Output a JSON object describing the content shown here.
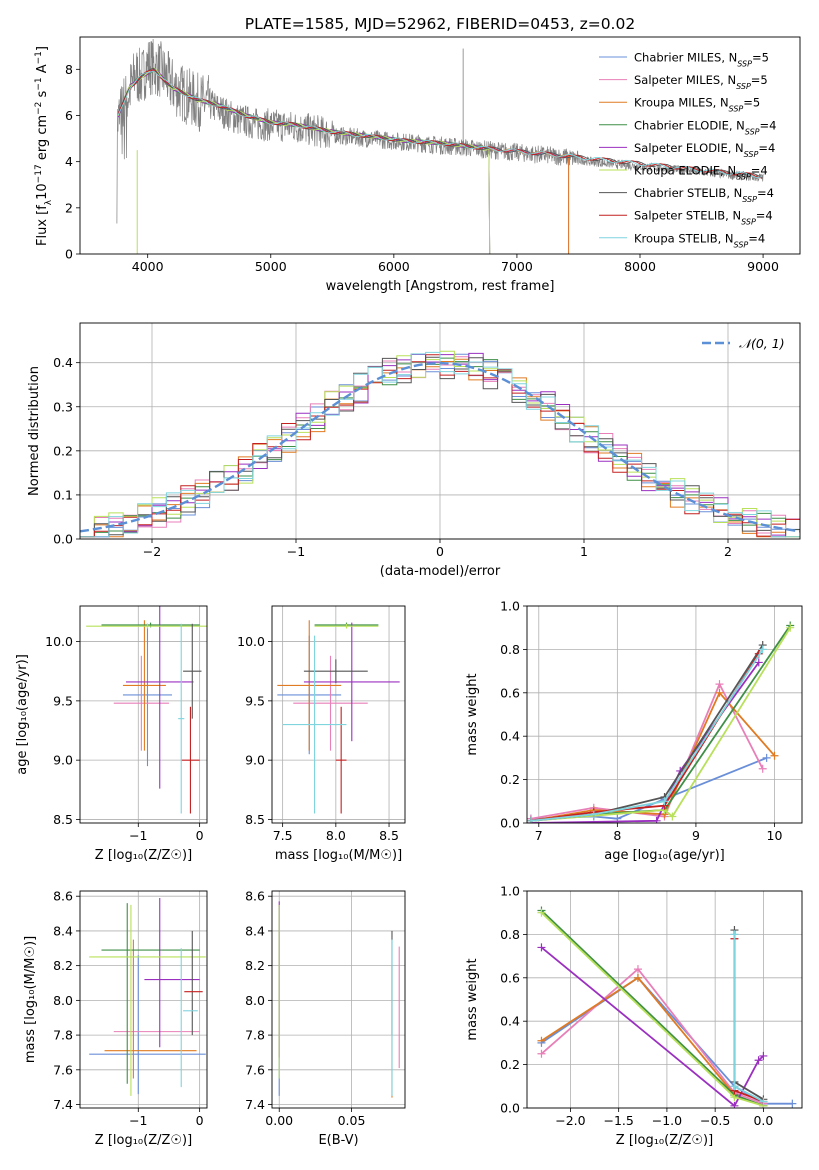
{
  "figure_title": "PLATE=1585, MJD=52962, FIBERID=0453, z=0.02",
  "series_styles": [
    {
      "name": "Chabrier MILES",
      "nssp": "5",
      "color": "#6a8fd8"
    },
    {
      "name": "Salpeter MILES",
      "nssp": "5",
      "color": "#e87fb8"
    },
    {
      "name": "Kroupa MILES",
      "nssp": "5",
      "color": "#e07b23"
    },
    {
      "name": "Chabrier ELODIE",
      "nssp": "4",
      "color": "#3f8f47"
    },
    {
      "name": "Salpeter ELODIE",
      "nssp": "4",
      "color": "#9b30c0"
    },
    {
      "name": "Kroupa ELODIE",
      "nssp": "4",
      "color": "#b8e05a"
    },
    {
      "name": "Chabrier STELIB",
      "nssp": "4",
      "color": "#555555"
    },
    {
      "name": "Salpeter STELIB",
      "nssp": "4",
      "color": "#c42020"
    },
    {
      "name": "Kroupa STELIB",
      "nssp": "4",
      "color": "#7fd4de"
    }
  ],
  "chart_data": [
    {
      "id": "spectrum",
      "type": "line",
      "xlabel": "wavelength [Angstrom, rest frame]",
      "ylabel_pre": "Flux [f",
      "ylabel_mid": "10",
      "ylabel_exp1": "−17",
      "ylabel_post": " erg cm",
      "ylabel_exp2": "−2",
      "ylabel_s": " s",
      "ylabel_exp3": "−1",
      "ylabel_end": " A",
      "ylabel_exp4": "−1",
      "ylabel_close": "]",
      "xlim": [
        3450,
        9300
      ],
      "ylim": [
        0,
        9.4
      ],
      "xticks": [
        4000,
        5000,
        6000,
        7000,
        8000,
        9000
      ],
      "yticks": [
        0,
        2,
        4,
        6,
        8
      ],
      "legend_loc": "upper right",
      "data_wavelength": [
        3750,
        3800,
        3850,
        3900,
        3950,
        4000,
        4100,
        4200,
        4300,
        4400,
        4500,
        4700,
        4900,
        5000,
        5200,
        5400,
        5600,
        5800,
        6000,
        6200,
        6400,
        6600,
        6800,
        7000,
        7200,
        7400,
        7600,
        7800,
        8000,
        8200,
        8400,
        8600,
        8800,
        9000
      ],
      "data_flux": [
        5.6,
        6.4,
        7.0,
        7.8,
        7.6,
        8.2,
        8.0,
        7.3,
        6.9,
        6.6,
        6.5,
        5.9,
        5.6,
        5.6,
        5.5,
        5.3,
        5.1,
        5.0,
        4.9,
        4.8,
        4.7,
        4.6,
        4.5,
        4.4,
        4.3,
        4.2,
        4.0,
        3.9,
        3.8,
        3.7,
        3.6,
        3.5,
        3.4,
        3.3
      ],
      "model_wavelength": [
        3760,
        3850,
        3950,
        4050,
        4200,
        4400,
        4600,
        4800,
        5000,
        5200,
        5500,
        5800,
        6100,
        6400,
        6700,
        7000,
        7200,
        7400
      ],
      "model_flux": [
        6.0,
        7.2,
        7.7,
        8.0,
        7.2,
        6.7,
        6.4,
        6.0,
        5.7,
        5.6,
        5.3,
        5.1,
        4.9,
        4.8,
        4.6,
        4.45,
        4.35,
        4.25
      ],
      "model_end": {
        "Chabrier ELODIE": 6780,
        "Salpeter ELODIE": 6780,
        "Kroupa ELODIE": 6780,
        "Chabrier MILES": 7420,
        "Salpeter MILES": 7420,
        "Kroupa MILES": 7420,
        "Chabrier STELIB": 9000,
        "Salpeter STELIB": 9000,
        "Kroupa STELIB": 9000
      },
      "spike": [
        6563,
        8.9
      ]
    },
    {
      "id": "residual_histogram",
      "type": "step",
      "xlabel": "(data-model)/error",
      "ylabel": "Normed distribution",
      "xlim": [
        -2.5,
        2.5
      ],
      "ylim": [
        0,
        0.49
      ],
      "xticks": [
        -2,
        -1,
        0,
        1,
        2
      ],
      "yticks": [
        0.0,
        0.1,
        0.2,
        0.3,
        0.4
      ],
      "bin_width": 0.1,
      "reference_label": "𝒩(0, 1)",
      "legend_loc": "upper right"
    },
    {
      "id": "age_vs_Z",
      "type": "errorbar",
      "xlabel": "Z [log₁₀(Z/Z☉)]",
      "ylabel": "age  [log₁₀(age/yr)]",
      "xlim": [
        -1.95,
        0.12
      ],
      "ylim": [
        8.47,
        10.3
      ],
      "xticks": [
        -1,
        0
      ],
      "yticks": [
        8.5,
        9.0,
        9.5,
        10.0
      ],
      "points": [
        {
          "series": 0,
          "x": -0.85,
          "xerr": 0.4,
          "y": 9.55,
          "yerr": 0.6
        },
        {
          "series": 1,
          "x": -0.95,
          "xerr": 0.45,
          "y": 9.48,
          "yerr": 0.4
        },
        {
          "series": 2,
          "x": -0.9,
          "xerr": 0.35,
          "y": 9.63,
          "yerr": 0.55
        },
        {
          "series": 3,
          "x": -0.8,
          "xerr": 0.8,
          "y": 10.14,
          "yerr": 0.02
        },
        {
          "series": 4,
          "x": -0.65,
          "xerr": 0.55,
          "y": 9.66,
          "yerr": 0.9
        },
        {
          "series": 5,
          "x": -0.85,
          "xerr": 1.0,
          "y": 10.13,
          "yerr": 0.02
        },
        {
          "series": 6,
          "x": -0.12,
          "xerr": 0.15,
          "y": 9.75,
          "yerr": 0.4
        },
        {
          "series": 7,
          "x": -0.15,
          "xerr": 0.15,
          "y": 9.0,
          "yerr": 0.45
        },
        {
          "series": 8,
          "x": -0.3,
          "xerr": 0.05,
          "y": 9.35,
          "yerr": 0.8
        }
      ]
    },
    {
      "id": "age_vs_mass",
      "type": "errorbar",
      "xlabel": "mass [log₁₀(M/M☉)]",
      "xlim": [
        7.4,
        8.65
      ],
      "ylim": [
        8.47,
        10.3
      ],
      "xticks": [
        7.5,
        8.0,
        8.5
      ],
      "yticks": [
        8.5,
        9.0,
        9.5,
        10.0
      ],
      "points": [
        {
          "series": 0,
          "x": 7.75,
          "xerr": 0.3,
          "y": 9.55,
          "yerr": 0.5
        },
        {
          "series": 1,
          "x": 7.95,
          "xerr": 0.35,
          "y": 9.48,
          "yerr": 0.4
        },
        {
          "series": 2,
          "x": 7.75,
          "xerr": 0.3,
          "y": 9.63,
          "yerr": 0.55
        },
        {
          "series": 3,
          "x": 8.1,
          "xerr": 0.3,
          "y": 10.14,
          "yerr": 0.02
        },
        {
          "series": 4,
          "x": 8.15,
          "xerr": 0.45,
          "y": 9.66,
          "yerr": 0.5
        },
        {
          "series": 5,
          "x": 8.1,
          "xerr": 0.3,
          "y": 10.13,
          "yerr": 0.02
        },
        {
          "series": 6,
          "x": 8.0,
          "xerr": 0.3,
          "y": 9.75,
          "yerr": 0.1
        },
        {
          "series": 7,
          "x": 8.05,
          "xerr": 0.05,
          "y": 9.0,
          "yerr": 0.45
        },
        {
          "series": 8,
          "x": 7.8,
          "xerr": 0.3,
          "y": 9.3,
          "yerr": 0.75
        }
      ]
    },
    {
      "id": "weight_vs_age",
      "type": "line",
      "xlabel": "age  [log₁₀(age/yr)]",
      "ylabel": "mass weight",
      "xlim": [
        6.85,
        10.35
      ],
      "ylim": [
        0,
        1.0
      ],
      "xticks": [
        7,
        8,
        9,
        10
      ],
      "yticks": [
        0.0,
        0.2,
        0.4,
        0.6,
        0.8,
        1.0
      ],
      "series": [
        {
          "series": 0,
          "x": [
            6.9,
            7.7,
            8.0,
            8.6,
            9.9
          ],
          "y": [
            0.02,
            0.03,
            0.02,
            0.11,
            0.3
          ]
        },
        {
          "series": 1,
          "x": [
            6.9,
            7.7,
            8.6,
            9.3,
            9.85
          ],
          "y": [
            0.02,
            0.07,
            0.03,
            0.64,
            0.25
          ]
        },
        {
          "series": 2,
          "x": [
            6.9,
            7.7,
            8.6,
            9.3,
            10.0
          ],
          "y": [
            0.01,
            0.06,
            0.04,
            0.6,
            0.31
          ]
        },
        {
          "series": 3,
          "x": [
            6.9,
            7.7,
            8.6,
            10.2
          ],
          "y": [
            0.01,
            0.04,
            0.06,
            0.91
          ]
        },
        {
          "series": 4,
          "x": [
            6.9,
            8.5,
            8.8,
            9.8
          ],
          "y": [
            0.0,
            0.01,
            0.24,
            0.74
          ]
        },
        {
          "series": 5,
          "x": [
            6.9,
            8.6,
            8.7,
            10.2
          ],
          "y": [
            0.01,
            0.06,
            0.03,
            0.9
          ]
        },
        {
          "series": 6,
          "x": [
            6.9,
            7.7,
            8.6,
            9.85
          ],
          "y": [
            0.01,
            0.04,
            0.12,
            0.82
          ]
        },
        {
          "series": 7,
          "x": [
            6.9,
            7.7,
            8.6,
            9.8
          ],
          "y": [
            0.01,
            0.05,
            0.08,
            0.78
          ]
        },
        {
          "series": 8,
          "x": [
            6.9,
            7.7,
            8.6,
            9.85
          ],
          "y": [
            0.01,
            0.04,
            0.1,
            0.8
          ]
        }
      ]
    },
    {
      "id": "mass_vs_Z",
      "type": "errorbar",
      "xlabel": "Z [log₁₀(Z/Z☉)]",
      "ylabel": "mass [log₁₀(M/M☉)]",
      "xlim": [
        -1.95,
        0.12
      ],
      "ylim": [
        7.38,
        8.63
      ],
      "xticks": [
        -1,
        0
      ],
      "yticks": [
        7.4,
        7.6,
        7.8,
        8.0,
        8.2,
        8.4,
        8.6
      ],
      "points": [
        {
          "series": 0,
          "x": -0.85,
          "xerr": 0.95,
          "y": 7.69,
          "yerr": 0.0
        },
        {
          "series": 0,
          "x": -1.0,
          "xerr": 0.0,
          "y": 7.86,
          "yerr": 0.4
        },
        {
          "series": 1,
          "x": -0.7,
          "xerr": 0.7,
          "y": 7.82,
          "yerr": 0.0
        },
        {
          "series": 2,
          "x": -0.8,
          "xerr": 0.75,
          "y": 7.71,
          "yerr": 0.0
        },
        {
          "series": 2,
          "x": -1.08,
          "xerr": 0.0,
          "y": 7.95,
          "yerr": 0.4
        },
        {
          "series": 3,
          "x": -0.8,
          "xerr": 0.8,
          "y": 8.29,
          "yerr": 0.0
        },
        {
          "series": 3,
          "x": -1.18,
          "xerr": 0.0,
          "y": 8.04,
          "yerr": 0.52
        },
        {
          "series": 4,
          "x": -0.45,
          "xerr": 0.45,
          "y": 8.12,
          "yerr": 0.0
        },
        {
          "series": 4,
          "x": -0.65,
          "xerr": 0.0,
          "y": 8.16,
          "yerr": 0.43
        },
        {
          "series": 5,
          "x": -0.85,
          "xerr": 0.95,
          "y": 8.25,
          "yerr": 0.0
        },
        {
          "series": 5,
          "x": -1.12,
          "xerr": 0.0,
          "y": 8.0,
          "yerr": 0.55
        },
        {
          "series": 6,
          "x": -0.12,
          "xerr": 0.0,
          "y": 8.1,
          "yerr": 0.3
        },
        {
          "series": 7,
          "x": -0.1,
          "xerr": 0.15,
          "y": 8.05,
          "yerr": 0.0
        },
        {
          "series": 8,
          "x": -0.3,
          "xerr": 0.0,
          "y": 7.9,
          "yerr": 0.4
        },
        {
          "series": 8,
          "x": -0.15,
          "xerr": 0.12,
          "y": 7.94,
          "yerr": 0.0
        }
      ]
    },
    {
      "id": "mass_vs_ebv",
      "type": "errorbar",
      "xlabel": "E(B-V)",
      "xlim": [
        -0.005,
        0.087
      ],
      "ylim": [
        7.38,
        8.63
      ],
      "xticks": [
        0.0,
        0.05
      ],
      "yticks": [
        7.4,
        7.6,
        7.8,
        8.0,
        8.2,
        8.4,
        8.6
      ],
      "points": [
        {
          "series": 0,
          "x": 0.0,
          "xerr": 0.0,
          "y": 8.0,
          "yerr": 0.55
        },
        {
          "series": 1,
          "x": 0.083,
          "xerr": 0.0,
          "y": 7.96,
          "yerr": 0.35
        },
        {
          "series": 2,
          "x": 0.078,
          "xerr": 0.0,
          "y": 7.82,
          "yerr": 0.38
        },
        {
          "series": 4,
          "x": 0.0,
          "xerr": 0.0,
          "y": 8.12,
          "yerr": 0.45
        },
        {
          "series": 5,
          "x": 0.0,
          "xerr": 0.0,
          "y": 8.05,
          "yerr": 0.5
        },
        {
          "series": 6,
          "x": 0.078,
          "xerr": 0.0,
          "y": 8.1,
          "yerr": 0.3
        },
        {
          "series": 8,
          "x": 0.078,
          "xerr": 0.0,
          "y": 7.9,
          "yerr": 0.45
        }
      ]
    },
    {
      "id": "weight_vs_Z",
      "type": "line",
      "xlabel": "Z [log₁₀(Z/Z☉)]",
      "ylabel": "mass weight",
      "xlim": [
        -2.45,
        0.4
      ],
      "ylim": [
        0,
        1.0
      ],
      "xticks": [
        -2.0,
        -1.5,
        -1.0,
        -0.5,
        0.0
      ],
      "yticks": [
        0.0,
        0.2,
        0.4,
        0.6,
        0.8,
        1.0
      ],
      "series": [
        {
          "series": 0,
          "x": [
            -2.3,
            -1.3,
            -0.3,
            0.0,
            0.3
          ],
          "y": [
            0.3,
            0.6,
            0.1,
            0.02,
            0.02
          ]
        },
        {
          "series": 1,
          "x": [
            -2.3,
            -1.3,
            -0.3,
            0.0
          ],
          "y": [
            0.25,
            0.64,
            0.07,
            0.02
          ]
        },
        {
          "series": 2,
          "x": [
            -2.3,
            -1.3,
            -0.3,
            0.0
          ],
          "y": [
            0.31,
            0.6,
            0.06,
            0.01
          ]
        },
        {
          "series": 3,
          "x": [
            -2.3,
            -0.3,
            0.0
          ],
          "y": [
            0.91,
            0.06,
            0.01
          ]
        },
        {
          "series": 4,
          "x": [
            -2.3,
            -0.3,
            -0.05,
            0.0
          ],
          "y": [
            0.74,
            0.01,
            0.22,
            0.24
          ]
        },
        {
          "series": 5,
          "x": [
            -2.3,
            -0.3,
            0.0
          ],
          "y": [
            0.9,
            0.05,
            0.01
          ]
        },
        {
          "series": 6,
          "x": [
            -0.3,
            -0.3,
            0.0
          ],
          "y": [
            0.82,
            0.12,
            0.04
          ]
        },
        {
          "series": 7,
          "x": [
            -0.3,
            -0.3,
            0.0
          ],
          "y": [
            0.78,
            0.08,
            0.03
          ]
        },
        {
          "series": 8,
          "x": [
            -0.3,
            -0.3,
            0.0
          ],
          "y": [
            0.8,
            0.1,
            0.03
          ]
        }
      ]
    }
  ]
}
